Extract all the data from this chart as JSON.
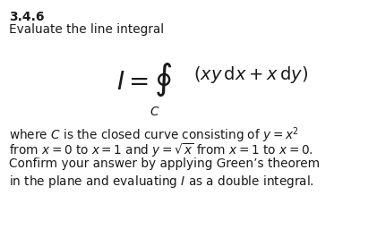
{
  "section": "3.4.6",
  "line1": "Evaluate the line integral",
  "body_line1": "where $C$ is the closed curve consisting of $y = x^2$",
  "body_line2": "from $x = 0$ to $x = 1$ and $y = \\sqrt{x}$ from $x = 1$ to $x = 0$.",
  "body_line3": "Confirm your answer by applying Green’s theorem",
  "body_line4": "in the plane and evaluating $I$ as a double integral.",
  "bg_color": "#ffffff",
  "text_color": "#1a1a1a",
  "section_fontsize": 10,
  "body_fontsize": 9.8,
  "formula_fontsize": 14
}
